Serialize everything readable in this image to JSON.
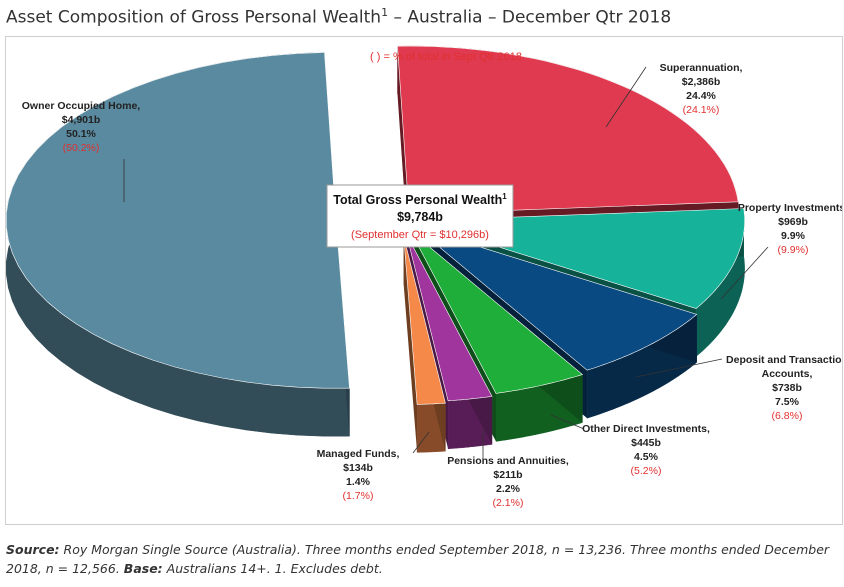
{
  "title": {
    "text": "Asset Composition of Gross Personal Wealth",
    "sup": "1",
    "rest": " – Australia – December Qtr 2018"
  },
  "note": "(   ) = % of total in Sept Qtr 2018",
  "center_box": {
    "line1": "Total Gross Personal Wealth",
    "line1_sup": "1",
    "line2": "$9,784b",
    "line3": "(September Qtr = $10,296b)"
  },
  "chart_data": {
    "type": "pie",
    "style": "3d-exploded",
    "series": [
      {
        "name": "Owner Occupied Home",
        "value_label": "$4,901b",
        "value": 4901,
        "pct": 50.1,
        "pct_label": "50.1%",
        "prev_pct_label": "(50.2%)",
        "color": "#5a8aa0"
      },
      {
        "name": "Superannuation",
        "value_label": "$2,386b",
        "value": 2386,
        "pct": 24.4,
        "pct_label": "24.4%",
        "prev_pct_label": "(24.1%)",
        "color": "#e03a50"
      },
      {
        "name": "Property Investments",
        "value_label": "$969b",
        "value": 969,
        "pct": 9.9,
        "pct_label": "9.9%",
        "prev_pct_label": "(9.9%)",
        "color": "#16b39a"
      },
      {
        "name": "Deposit and Transaction Accounts",
        "value_label": "$738b",
        "value": 738,
        "pct": 7.5,
        "pct_label": "7.5%",
        "prev_pct_label": "(6.8%)",
        "color": "#0a4a82"
      },
      {
        "name": "Other Direct Investments",
        "value_label": "$445b",
        "value": 445,
        "pct": 4.5,
        "pct_label": "4.5%",
        "prev_pct_label": "(5.2%)",
        "color": "#1fae3a"
      },
      {
        "name": "Pensions and Annuities",
        "value_label": "$211b",
        "value": 211,
        "pct": 2.2,
        "pct_label": "2.2%",
        "prev_pct_label": "(2.1%)",
        "color": "#a0359e"
      },
      {
        "name": "Managed Funds",
        "value_label": "$134b",
        "value": 134,
        "pct": 1.4,
        "pct_label": "1.4%",
        "prev_pct_label": "(1.7%)",
        "color": "#f5894a"
      }
    ]
  },
  "source": {
    "label": "Source:",
    "text": " Roy Morgan Single Source (Australia). Three months ended September 2018, n = 13,236. Three months ended December 2018, n = 12,566. ",
    "base_label": "Base:",
    "base_text": " Australians 14+. 1. Excludes debt."
  }
}
